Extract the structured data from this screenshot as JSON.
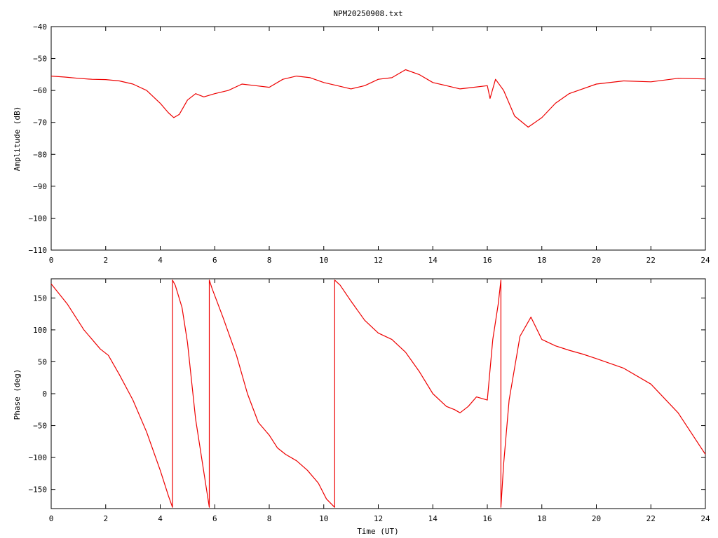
{
  "title": "NPM20250908.txt",
  "chart_data": [
    {
      "type": "line",
      "ylabel": "Amplitude (dB)",
      "xlabel": "",
      "xlim": [
        0,
        24
      ],
      "ylim": [
        -110,
        -40
      ],
      "xticks": [
        0,
        2,
        4,
        6,
        8,
        10,
        12,
        14,
        16,
        18,
        20,
        22,
        24
      ],
      "yticks": [
        -110,
        -100,
        -90,
        -80,
        -70,
        -60,
        -50,
        -40
      ],
      "tick_labels_x": [
        "0",
        "2",
        "4",
        "6",
        "8",
        "10",
        "12",
        "14",
        "16",
        "18",
        "20",
        "22",
        "24"
      ],
      "tick_labels_y": [
        "−110",
        "−100",
        "−90",
        "−80",
        "−70",
        "−60",
        "−50",
        "−40"
      ],
      "color": "#ee0000",
      "series": [
        {
          "x": [
            0,
            0.5,
            1,
            1.5,
            2,
            2.5,
            3,
            3.5,
            4,
            4.3,
            4.5,
            4.7,
            5,
            5.3,
            5.6,
            6,
            6.5,
            7,
            7.5,
            8,
            8.5,
            9,
            9.5,
            10,
            10.5,
            11,
            11.5,
            12,
            12.5,
            13,
            13.5,
            14,
            14.5,
            15,
            15.5,
            16,
            16.1,
            16.3,
            16.6,
            17,
            17.5,
            18,
            18.5,
            19,
            20,
            21,
            22,
            23,
            24
          ],
          "y": [
            -55.5,
            -55.8,
            -56.2,
            -56.5,
            -56.6,
            -57,
            -58,
            -60,
            -64,
            -67,
            -68.5,
            -67.5,
            -63,
            -61,
            -62,
            -61,
            -60,
            -58,
            -58.5,
            -59,
            -56.5,
            -55.5,
            -56,
            -57.5,
            -58.5,
            -59.5,
            -58.5,
            -56.5,
            -56,
            -53.5,
            -55,
            -57.5,
            -58.5,
            -59.5,
            -59,
            -58.5,
            -62.5,
            -56.5,
            -60,
            -68,
            -71.5,
            -68.5,
            -64,
            -61,
            -58,
            -57,
            -57.3,
            -56.2,
            -56.4
          ]
        }
      ]
    },
    {
      "type": "line",
      "ylabel": "Phase (deg)",
      "xlabel": "Time (UT)",
      "xlim": [
        0,
        24
      ],
      "ylim": [
        -180,
        180
      ],
      "xticks": [
        0,
        2,
        4,
        6,
        8,
        10,
        12,
        14,
        16,
        18,
        20,
        22,
        24
      ],
      "yticks": [
        -150,
        -100,
        -50,
        0,
        50,
        100,
        150
      ],
      "tick_labels_x": [
        "0",
        "2",
        "4",
        "6",
        "8",
        "10",
        "12",
        "14",
        "16",
        "18",
        "20",
        "22",
        "24"
      ],
      "tick_labels_y": [
        "−150",
        "−100",
        "−50",
        "0",
        "50",
        "100",
        "150"
      ],
      "color": "#ee0000",
      "series": [
        {
          "x": [
            0,
            0.6,
            1.2,
            1.8,
            2.1,
            2.5,
            3,
            3.5,
            4,
            4.3,
            4.45,
            4.45,
            4.55,
            4.8,
            5,
            5.3,
            5.8,
            5.8,
            5.9,
            6.3,
            6.8,
            7.2,
            7.6,
            8,
            8.3,
            8.6,
            9,
            9.4,
            9.8,
            10.1,
            10.4,
            10.4,
            10.6,
            11,
            11.5,
            12,
            12.5,
            13,
            13.5,
            14,
            14.5,
            14.8,
            15,
            15.3,
            15.6,
            16,
            16.2,
            16.4,
            16.5,
            16.5,
            16.6,
            16.8,
            17.2,
            17.6,
            18,
            18.5,
            19,
            19.5,
            20,
            21,
            22,
            23,
            24
          ],
          "y": [
            172,
            140,
            100,
            70,
            60,
            30,
            -10,
            -60,
            -120,
            -160,
            -178,
            178,
            170,
            135,
            80,
            -40,
            -178,
            178,
            165,
            120,
            60,
            0,
            -45,
            -65,
            -85,
            -95,
            -105,
            -120,
            -140,
            -165,
            -178,
            178,
            170,
            145,
            115,
            95,
            85,
            65,
            35,
            0,
            -20,
            -25,
            -30,
            -20,
            -5,
            -10,
            85,
            140,
            178,
            -178,
            -110,
            -10,
            90,
            120,
            85,
            75,
            68,
            62,
            55,
            40,
            15,
            -30,
            -95
          ]
        }
      ]
    }
  ]
}
